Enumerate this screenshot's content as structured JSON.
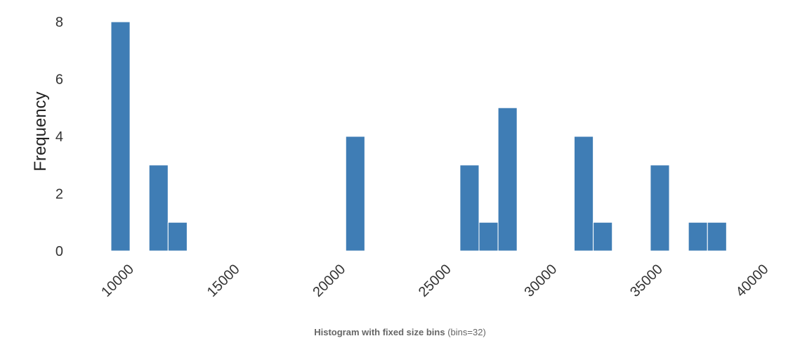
{
  "chart_data": {
    "type": "histogram",
    "bar_color": "#3f7db5",
    "bin_width": 900,
    "bins": [
      {
        "start": 9550,
        "count": 8
      },
      {
        "start": 11350,
        "count": 3
      },
      {
        "start": 12250,
        "count": 1
      },
      {
        "start": 20650,
        "count": 4
      },
      {
        "start": 26050,
        "count": 3
      },
      {
        "start": 26950,
        "count": 1
      },
      {
        "start": 27850,
        "count": 5
      },
      {
        "start": 31450,
        "count": 4
      },
      {
        "start": 32350,
        "count": 1
      },
      {
        "start": 35050,
        "count": 3
      },
      {
        "start": 36850,
        "count": 1
      },
      {
        "start": 37750,
        "count": 1
      }
    ],
    "x_ticks": [
      "10000",
      "15000",
      "20000",
      "25000",
      "30000",
      "35000",
      "40000"
    ],
    "y_ticks": [
      "0",
      "2",
      "4",
      "6",
      "8"
    ],
    "xlim": [
      9550,
      40000
    ],
    "ylim": [
      0,
      8
    ],
    "ylabel": "Frequency",
    "xlabel": "",
    "grid": false
  },
  "caption": {
    "bold": "Histogram with fixed size bins",
    "normal": "(bins=32)"
  }
}
